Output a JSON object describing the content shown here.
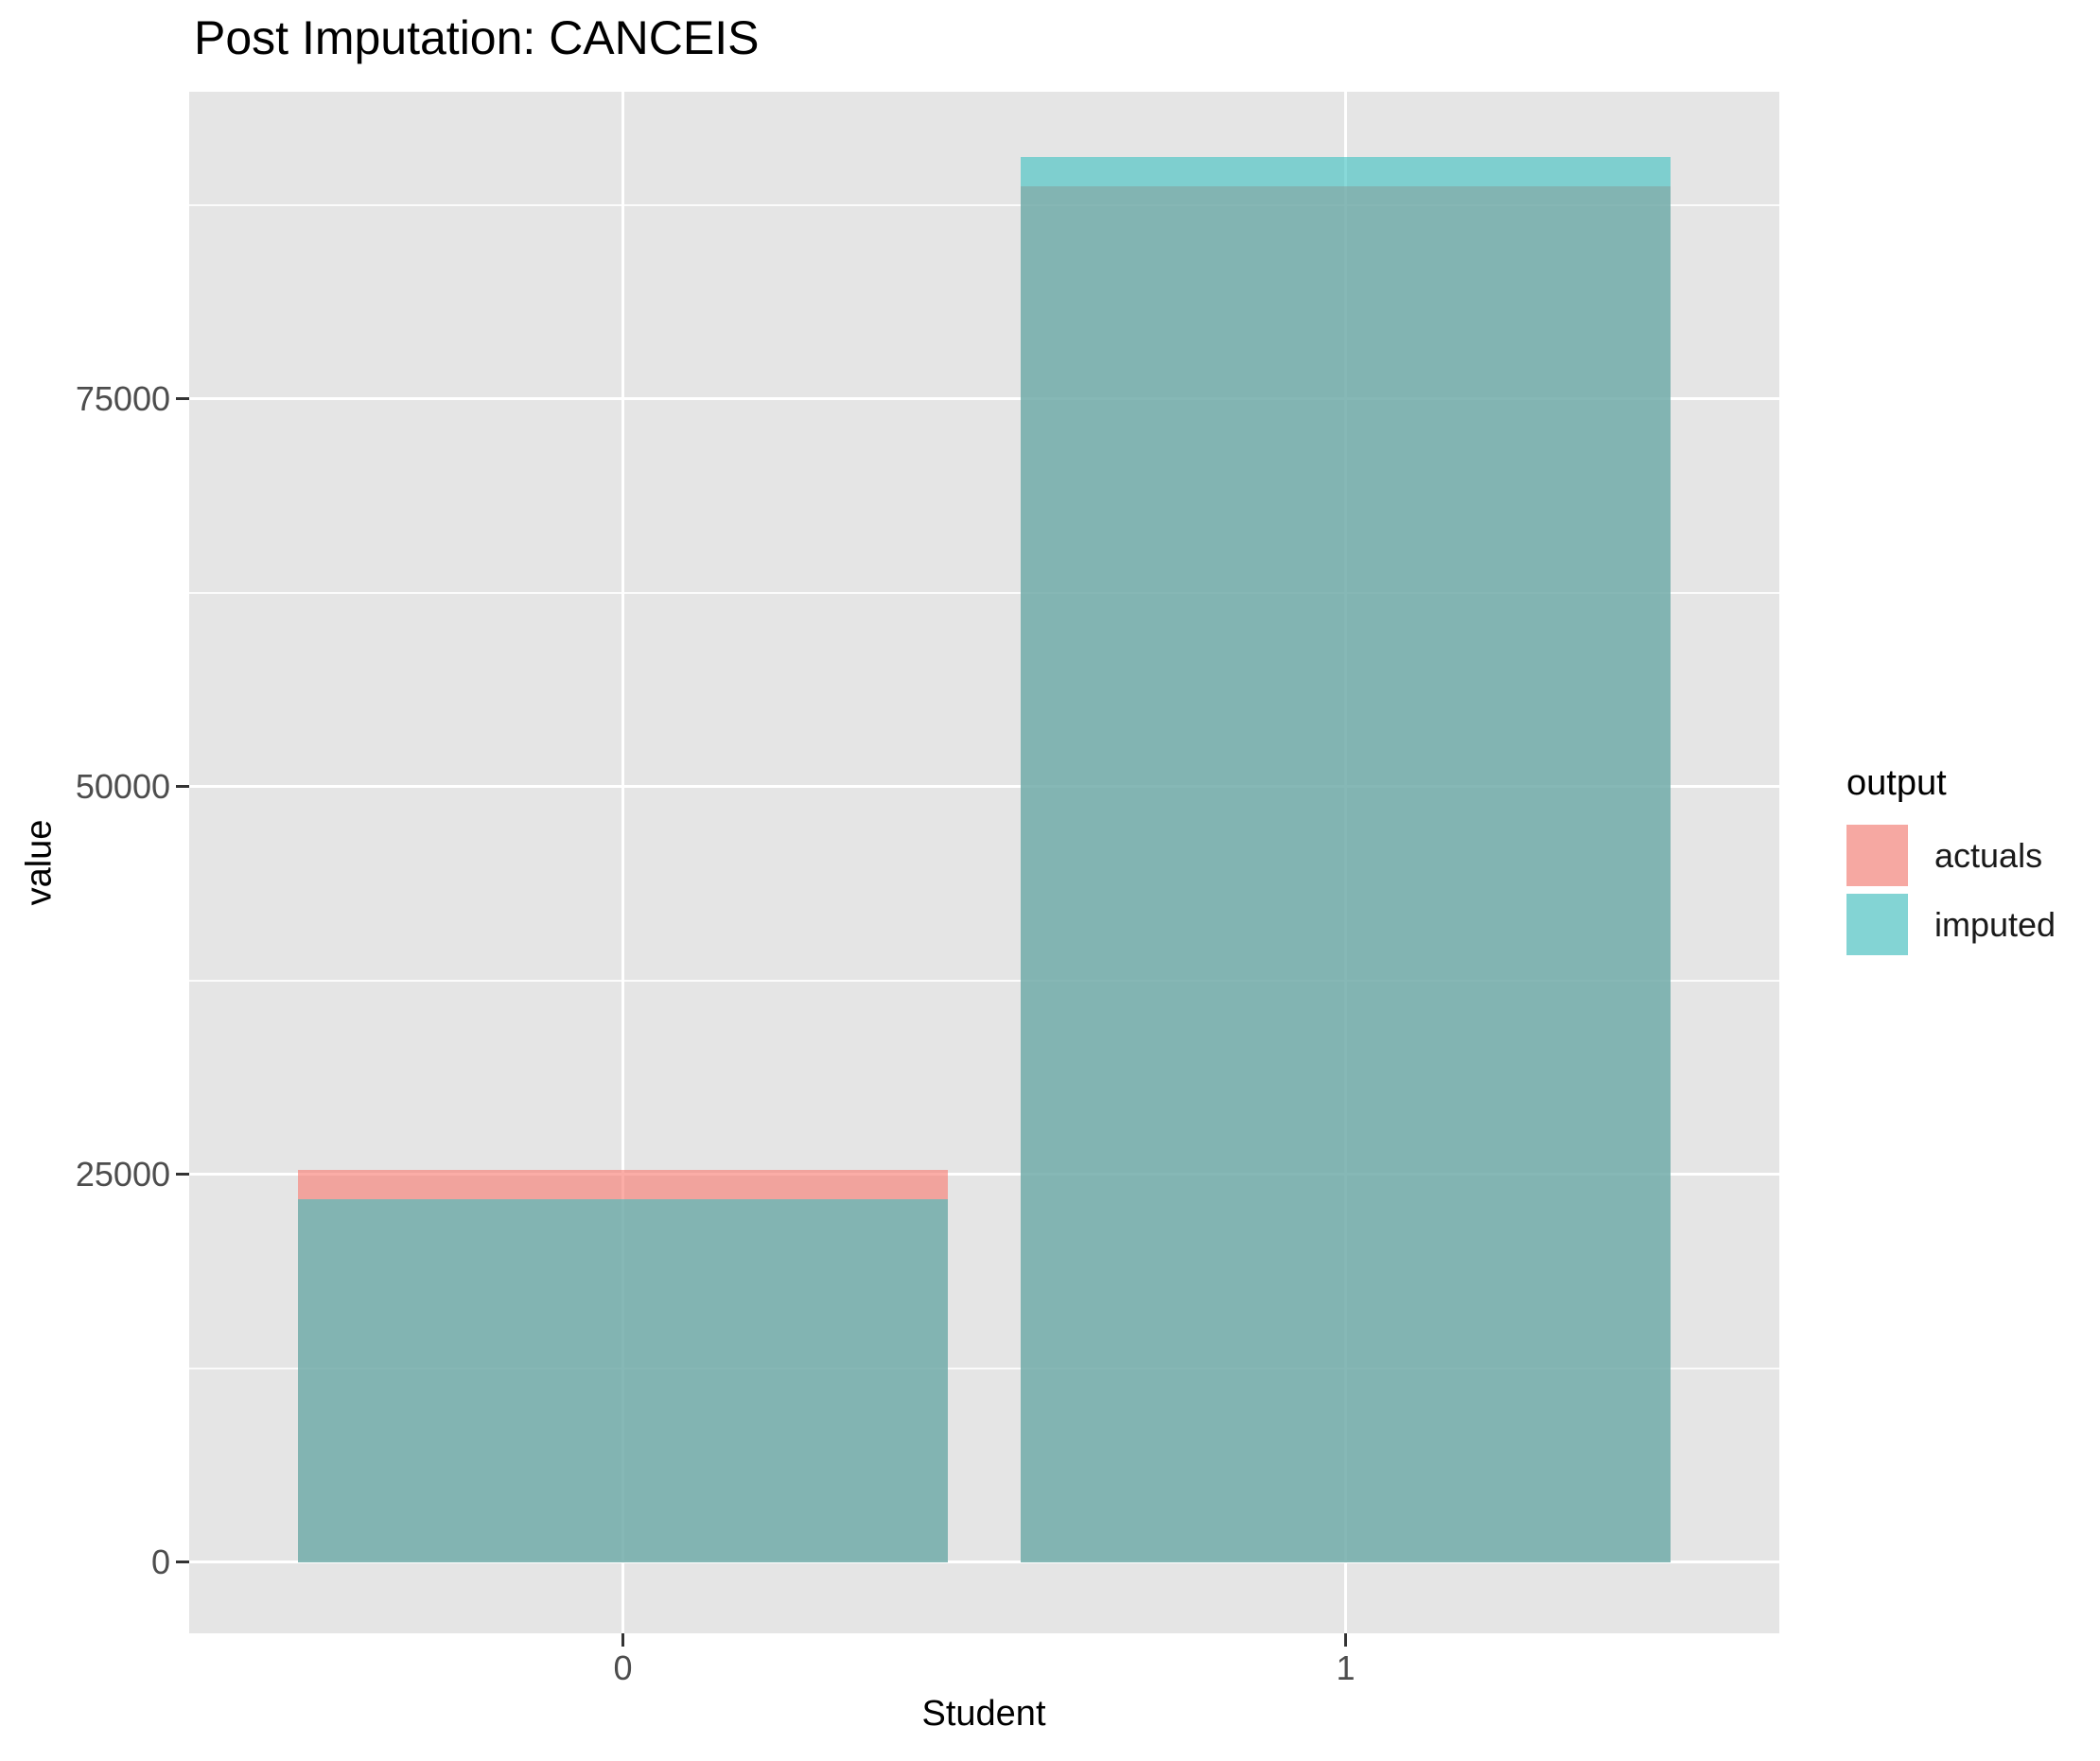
{
  "chart_data": {
    "type": "bar",
    "title": "Post Imputation: CANCEIS",
    "xlabel": "Student",
    "ylabel": "value",
    "categories": [
      "0",
      "1"
    ],
    "series": [
      {
        "name": "actuals",
        "values": [
          25300,
          88700
        ],
        "color": "#F8766D",
        "fill": "rgba(248,118,109,0.6)"
      },
      {
        "name": "imputed",
        "values": [
          23400,
          90600
        ],
        "color": "#38C0C0",
        "fill": "rgba(56,192,192,0.6)"
      }
    ],
    "legend": {
      "title": "output",
      "position": "right"
    },
    "y_ticks": [
      0,
      25000,
      50000,
      75000
    ],
    "y_tick_labels": [
      "0",
      "25000",
      "50000",
      "75000"
    ],
    "x_tick_labels": [
      "0",
      "1"
    ],
    "ylim": [
      -4600,
      94800
    ],
    "bar_mode": "identity-overlap",
    "alpha": 0.6,
    "bar_rel_width": 0.9,
    "grid": "white major and minor gridlines on grey panel",
    "panel_bg": "#E5E5E5",
    "grid_color": "#FFFFFF",
    "tick_label_color": "#4D4D4D",
    "axis_tick_color": "#333333",
    "text_color": "#000000"
  }
}
